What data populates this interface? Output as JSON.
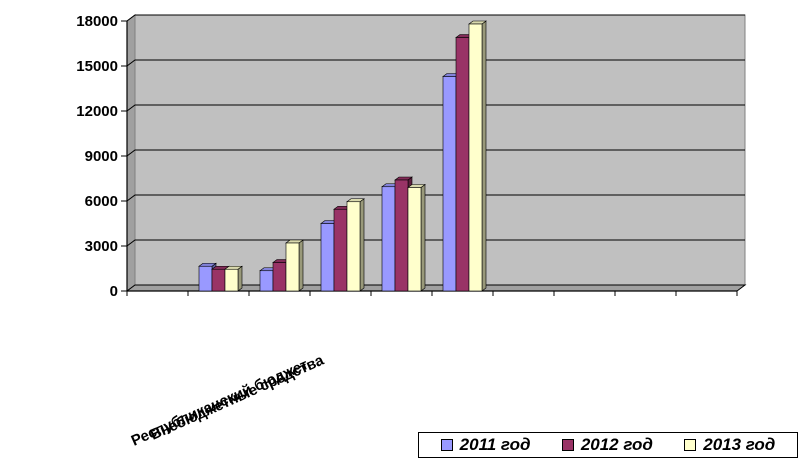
{
  "chart_data": {
    "type": "bar",
    "style": "3d-clustered-column",
    "ylim": [
      0,
      18000
    ],
    "yticks": [
      "0",
      "3000",
      "6000",
      "9000",
      "12000",
      "15000",
      "18000"
    ],
    "category_slots": 10,
    "category_labels": [
      "Республиканский бюджет",
      "Внебюджетные средства"
    ],
    "groups": [
      {
        "values": [
          1650,
          1450,
          1450
        ]
      },
      {
        "values": [
          1350,
          1900,
          3200
        ]
      },
      {
        "values": [
          4500,
          5450,
          5950
        ]
      },
      {
        "values": [
          6950,
          7400,
          6900
        ]
      },
      {
        "values": [
          14300,
          16900,
          17800
        ]
      }
    ],
    "series": [
      {
        "name": "2011 год",
        "color": "#9999ff"
      },
      {
        "name": "2012 год",
        "color": "#993366"
      },
      {
        "name": "2013 год",
        "color": "#ffffcc"
      }
    ],
    "plot_background": "#c0c0c0",
    "grid": true,
    "legend_position": "bottom-right"
  }
}
